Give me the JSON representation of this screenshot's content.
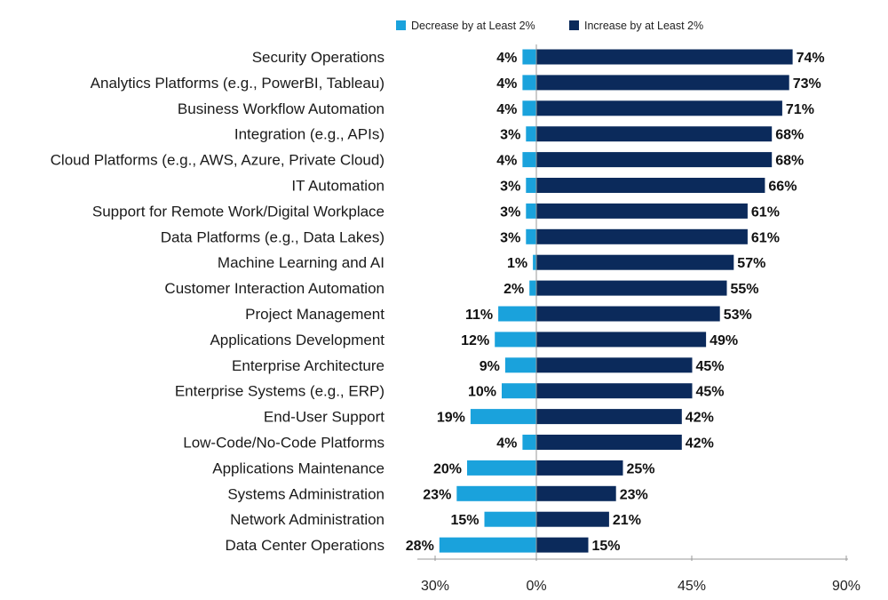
{
  "chart_data": {
    "type": "bar",
    "orientation": "horizontal",
    "title": "",
    "xlabel": "",
    "ylabel": "",
    "legend_position": "top-right",
    "colors": {
      "decrease": "#1aa2dc",
      "increase": "#0b2a5b",
      "axis": "#999999"
    },
    "x_ticks": [
      {
        "value": -30,
        "label": "30%"
      },
      {
        "value": 0,
        "label": "0%"
      },
      {
        "value": 45,
        "label": "45%"
      },
      {
        "value": 90,
        "label": "90%"
      }
    ],
    "xlim": [
      -30,
      90
    ],
    "categories": [
      "Security Operations",
      "Analytics Platforms (e.g., PowerBI, Tableau)",
      "Business Workflow Automation",
      "Integration (e.g., APIs)",
      "Cloud Platforms (e.g., AWS, Azure, Private Cloud)",
      "IT Automation",
      "Support for Remote Work/Digital Workplace",
      "Data Platforms (e.g., Data Lakes)",
      "Machine Learning and AI",
      "Customer Interaction Automation",
      "Project Management",
      "Applications Development",
      "Enterprise Architecture",
      "Enterprise Systems (e.g., ERP)",
      "End-User Support",
      "Low-Code/No-Code Platforms",
      "Applications Maintenance",
      "Systems Administration",
      "Network Administration",
      "Data Center Operations"
    ],
    "series": [
      {
        "name": "Decrease by at Least 2%",
        "values": [
          4,
          4,
          4,
          3,
          4,
          3,
          3,
          3,
          1,
          2,
          11,
          12,
          9,
          10,
          19,
          4,
          20,
          23,
          15,
          28
        ],
        "labels": [
          "4%",
          "4%",
          "4%",
          "3%",
          "4%",
          "3%",
          "3%",
          "3%",
          "1%",
          "2%",
          "11%",
          "12%",
          "9%",
          "10%",
          "19%",
          "4%",
          "20%",
          "23%",
          "15%",
          "28%"
        ]
      },
      {
        "name": "Increase by at Least 2%",
        "values": [
          74,
          73,
          71,
          68,
          68,
          66,
          61,
          61,
          57,
          55,
          53,
          49,
          45,
          45,
          42,
          42,
          25,
          23,
          21,
          15
        ],
        "labels": [
          "74%",
          "73%",
          "71%",
          "68%",
          "68%",
          "66%",
          "61%",
          "61%",
          "57%",
          "55%",
          "53%",
          "49%",
          "45%",
          "45%",
          "42%",
          "42%",
          "25%",
          "23%",
          "21%",
          "15%"
        ]
      }
    ]
  }
}
